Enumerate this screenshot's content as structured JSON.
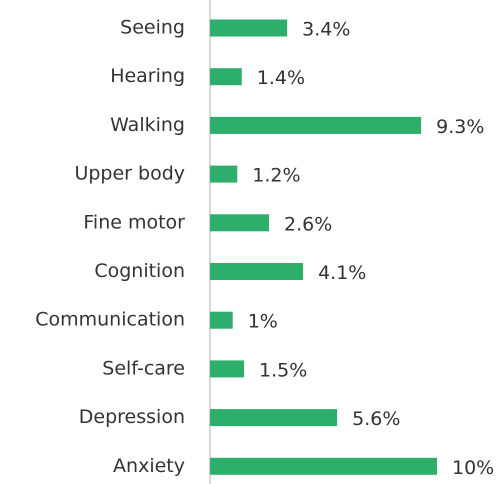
{
  "chart_data": {
    "type": "hbar",
    "categories": [
      "Seeing",
      "Hearing",
      "Walking",
      "Upper body",
      "Fine motor",
      "Cognition",
      "Communication",
      "Self-care",
      "Depression",
      "Anxiety"
    ],
    "values": [
      3.4,
      1.4,
      9.3,
      1.2,
      2.6,
      4.1,
      1,
      1.5,
      5.6,
      10
    ],
    "value_labels": [
      "3.4%",
      "1.4%",
      "9.3%",
      "1.2%",
      "2.6%",
      "4.1%",
      "1%",
      "1.5%",
      "5.6%",
      "10%"
    ],
    "color": "#2eae6b",
    "xlim": [
      0,
      10
    ]
  }
}
